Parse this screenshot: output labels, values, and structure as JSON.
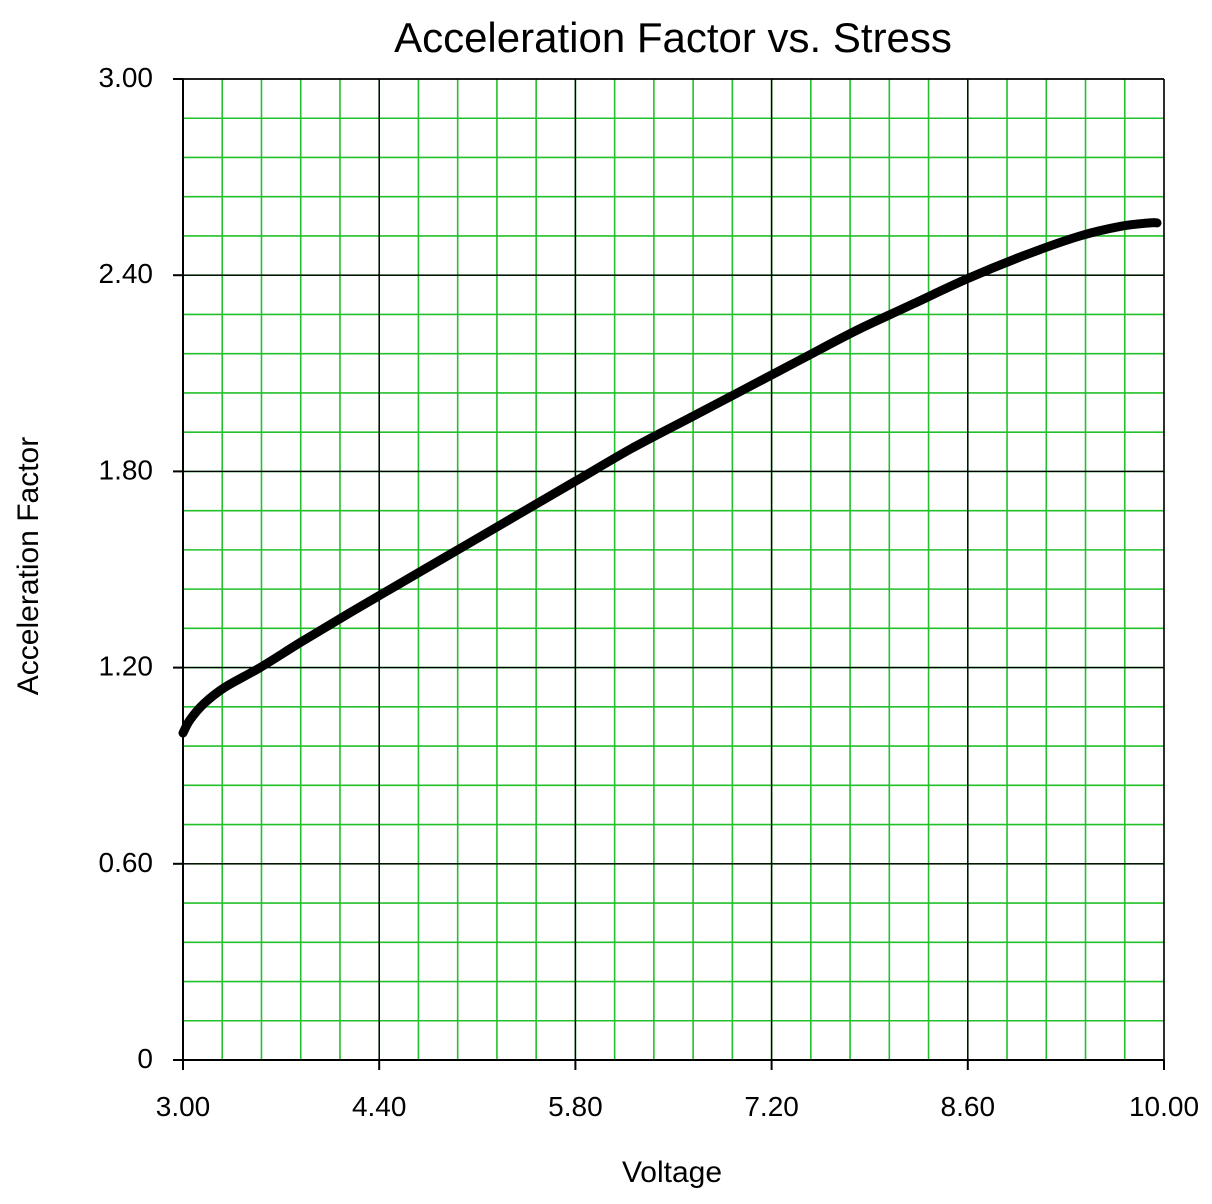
{
  "chart_data": {
    "type": "line",
    "title": "Acceleration Factor vs. Stress",
    "xlabel": "Voltage",
    "ylabel": "Acceleration Factor",
    "xlim": [
      3.0,
      10.0
    ],
    "ylim": [
      0,
      3.0
    ],
    "x_ticks": [
      "3.00",
      "4.40",
      "5.80",
      "7.20",
      "8.60",
      "10.00"
    ],
    "y_ticks": [
      "0",
      "0.60",
      "1.20",
      "1.80",
      "2.40",
      "3.00"
    ],
    "x_tick_values": [
      3.0,
      4.4,
      5.8,
      7.2,
      8.6,
      10.0
    ],
    "y_tick_values": [
      0,
      0.6,
      1.2,
      1.8,
      2.4,
      3.0
    ],
    "minor_x_step": 0.28,
    "minor_y_step": 0.12,
    "grid": true,
    "legend": "none",
    "colors": {
      "minor_grid": "#22c02a",
      "major_grid": "#000000",
      "line": "#000000"
    },
    "series": [
      {
        "x": [
          3.0,
          3.05,
          3.15,
          3.3,
          3.55,
          3.85,
          4.2,
          4.6,
          5.0,
          5.4,
          5.8,
          6.2,
          6.6,
          7.0,
          7.4,
          7.8,
          8.2,
          8.6,
          9.0,
          9.4,
          9.7,
          9.9,
          9.95
        ],
        "y": [
          1.0,
          1.04,
          1.09,
          1.14,
          1.2,
          1.28,
          1.37,
          1.47,
          1.57,
          1.67,
          1.77,
          1.87,
          1.96,
          2.05,
          2.14,
          2.23,
          2.31,
          2.39,
          2.46,
          2.52,
          2.55,
          2.56,
          2.56
        ]
      }
    ]
  }
}
